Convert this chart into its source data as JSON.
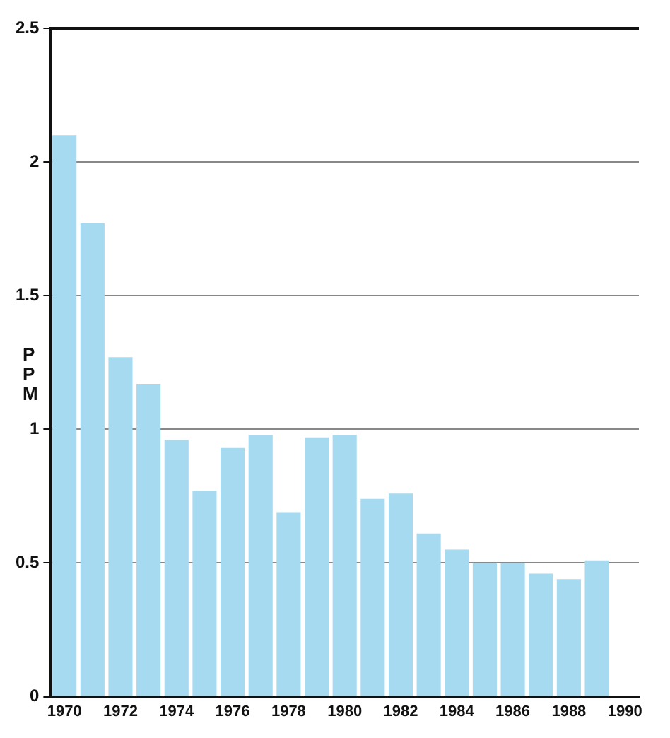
{
  "chart_data": {
    "type": "bar",
    "ylabel": "PPM",
    "categories": [
      "1970",
      null,
      "1972",
      null,
      "1974",
      null,
      "1976",
      null,
      "1978",
      null,
      "1980",
      null,
      "1982",
      null,
      "1984",
      null,
      "1986",
      null,
      "1988",
      null,
      "1990"
    ],
    "values": [
      2.1,
      1.77,
      1.27,
      1.17,
      0.96,
      0.77,
      0.93,
      0.98,
      0.69,
      0.97,
      0.98,
      0.74,
      0.76,
      0.61,
      0.55,
      0.5,
      0.5,
      0.46,
      0.44,
      0.51,
      null
    ],
    "color": "#a6daf0",
    "ylim": [
      0,
      2.5
    ],
    "yticks": [
      0,
      0.5,
      1,
      1.5,
      2,
      2.5
    ],
    "grid": "y",
    "legend": false
  }
}
